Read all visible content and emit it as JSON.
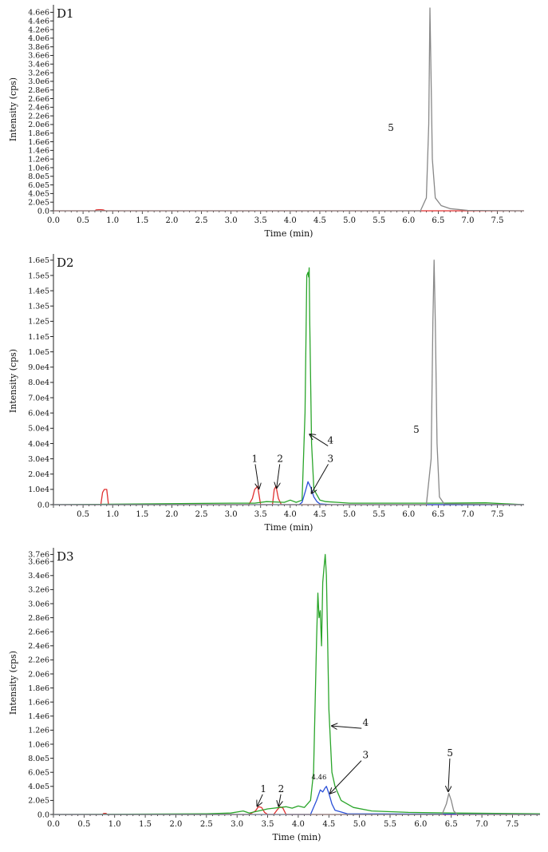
{
  "colors": {
    "red": "#e03030",
    "blue": "#2b50d8",
    "green": "#2aa52a",
    "gray": "#888888",
    "axis": "#222222"
  },
  "chart_data": [
    {
      "type": "line",
      "panel_label": "D1",
      "xlabel": "Time (min)",
      "ylabel": "Intensity (cps)",
      "xlim": [
        0.0,
        7.95
      ],
      "ylim": [
        0,
        4700000
      ],
      "x_ticks": [
        "0.0",
        "0.5",
        "1.0",
        "1.5",
        "2.0",
        "2.5",
        "3.0",
        "3.5",
        "4.0",
        "4.5",
        "5.0",
        "5.5",
        "6.0",
        "6.5",
        "7.0",
        "7.5"
      ],
      "y_ticks": [
        "0.0",
        "2.0e5",
        "4.0e5",
        "6.0e5",
        "8.0e5",
        "1.0e6",
        "1.2e6",
        "1.4e6",
        "1.6e6",
        "1.8e6",
        "2.0e6",
        "2.2e6",
        "2.4e6",
        "2.6e6",
        "2.8e6",
        "3.0e6",
        "3.2e6",
        "3.4e6",
        "3.6e6",
        "3.8e6",
        "4.0e6",
        "4.2e6",
        "4.4e6",
        "4.6e6"
      ],
      "series": [
        {
          "color": "red",
          "x": [
            0.0,
            0.7,
            0.72,
            0.76,
            0.8,
            0.84,
            0.88,
            7.95
          ],
          "y": [
            0,
            0,
            20000,
            25000,
            25000,
            20000,
            0,
            0
          ]
        },
        {
          "color": "gray",
          "x": [
            0.0,
            6.2,
            6.3,
            6.34,
            6.36,
            6.38,
            6.4,
            6.45,
            6.55,
            6.7,
            7.0,
            7.95
          ],
          "y": [
            0,
            0,
            300000,
            2000000,
            4700000,
            3000000,
            1200000,
            300000,
            120000,
            50000,
            10000,
            0
          ]
        }
      ],
      "annotations": [
        {
          "text": "5",
          "x": 5.7,
          "y": 1850000
        }
      ]
    },
    {
      "type": "line",
      "panel_label": "D2",
      "xlabel": "Time (min)",
      "ylabel": "Intensity (cps)",
      "xlim": [
        0.0,
        7.95
      ],
      "ylim": [
        0,
        162000
      ],
      "x_ticks": [
        "0.5",
        "1.0",
        "1.5",
        "2.0",
        "2.5",
        "3.0",
        "3.5",
        "4.0",
        "4.5",
        "5.0",
        "5.5",
        "6.0",
        "6.5",
        "7.0",
        "7.5"
      ],
      "y_ticks": [
        "0.0",
        "1.0e4",
        "2.0e4",
        "3.0e4",
        "4.0e4",
        "5.0e4",
        "6.0e4",
        "7.0e4",
        "8.0e4",
        "9.0e4",
        "1.0e5",
        "1.1e5",
        "1.2e5",
        "1.3e5",
        "1.4e5",
        "1.5e5",
        "1.6e5"
      ],
      "series": [
        {
          "color": "red",
          "x": [
            0.0,
            0.8,
            0.83,
            0.86,
            0.9,
            0.93,
            3.3,
            3.36,
            3.4,
            3.45,
            3.5,
            3.6,
            3.7,
            3.73,
            3.76,
            3.8,
            3.85,
            7.95
          ],
          "y": [
            0,
            0,
            8000,
            10000,
            10000,
            0,
            0,
            4000,
            10000,
            12000,
            0,
            0,
            0,
            10000,
            12000,
            4000,
            0,
            0
          ]
        },
        {
          "color": "green",
          "x": [
            0.0,
            3.0,
            3.4,
            3.6,
            3.9,
            4.0,
            4.1,
            4.2,
            4.25,
            4.28,
            4.3,
            4.31,
            4.32,
            4.33,
            4.36,
            4.4,
            4.5,
            4.6,
            4.8,
            5.0,
            6.5,
            7.3,
            7.95
          ],
          "y": [
            0,
            1000,
            1000,
            2000,
            1500,
            3000,
            1500,
            3000,
            60000,
            150000,
            152000,
            149000,
            155000,
            120000,
            40000,
            10000,
            3000,
            2000,
            1500,
            1000,
            1000,
            1200,
            0
          ]
        },
        {
          "color": "blue",
          "x": [
            0.0,
            4.15,
            4.2,
            4.25,
            4.3,
            4.35,
            4.4,
            4.45,
            4.5,
            4.7,
            7.95
          ],
          "y": [
            0,
            0,
            1500,
            8000,
            15000,
            11000,
            5000,
            2000,
            500,
            0,
            0
          ]
        },
        {
          "color": "gray",
          "x": [
            0.0,
            6.3,
            6.38,
            6.41,
            6.43,
            6.45,
            6.48,
            6.52,
            6.6,
            7.95
          ],
          "y": [
            0,
            0,
            30000,
            120000,
            160000,
            120000,
            40000,
            5000,
            500,
            0
          ]
        }
      ],
      "annotations": [
        {
          "text": "1",
          "x": 3.4,
          "y": 28000,
          "arrow_to": [
            3.47,
            10500
          ]
        },
        {
          "text": "2",
          "x": 3.83,
          "y": 28000,
          "arrow_to": [
            3.77,
            11000
          ]
        },
        {
          "text": "3",
          "x": 4.68,
          "y": 28000,
          "arrow_to": [
            4.36,
            7500
          ]
        },
        {
          "text": "4",
          "x": 4.68,
          "y": 40000,
          "arrow_to": [
            4.33,
            46000
          ]
        },
        {
          "text": "5",
          "x": 6.13,
          "y": 47000
        }
      ]
    },
    {
      "type": "line",
      "panel_label": "D3",
      "xlabel": "Time (min)",
      "ylabel": "Intensity (cps)",
      "xlim": [
        0.0,
        7.95
      ],
      "ylim": [
        0,
        3750000
      ],
      "x_ticks": [
        "0.0",
        "0.5",
        "1.0",
        "1.5",
        "2.0",
        "2.5",
        "3.0",
        "3.5",
        "4.0",
        "4.5",
        "5.0",
        "5.5",
        "6.0",
        "6.5",
        "7.0",
        "7.5"
      ],
      "y_ticks": [
        "0.0",
        "2.0e5",
        "4.0e5",
        "6.0e5",
        "8.0e5",
        "1.0e6",
        "1.2e6",
        "1.4e6",
        "1.6e6",
        "1.8e6",
        "2.0e6",
        "2.2e6",
        "2.4e6",
        "2.6e6",
        "2.8e6",
        "3.0e6",
        "3.2e6",
        "3.4e6",
        "3.6e6",
        "3.7e6"
      ],
      "series": [
        {
          "color": "red",
          "x": [
            0.0,
            0.8,
            0.82,
            0.86,
            0.88,
            3.2,
            3.3,
            3.35,
            3.4,
            3.45,
            3.5,
            3.6,
            3.65,
            3.7,
            3.75,
            3.8,
            7.95
          ],
          "y": [
            0,
            0,
            15000,
            15000,
            0,
            0,
            50000,
            110000,
            100000,
            30000,
            0,
            0,
            60000,
            110000,
            90000,
            0,
            0
          ]
        },
        {
          "color": "green",
          "x": [
            0.0,
            1.2,
            2.5,
            2.9,
            3.1,
            3.2,
            3.4,
            3.5,
            3.6,
            3.7,
            3.8,
            3.9,
            4.0,
            4.1,
            4.2,
            4.25,
            4.3,
            4.32,
            4.34,
            4.36,
            4.38,
            4.4,
            4.42,
            4.44,
            4.46,
            4.48,
            4.5,
            4.55,
            4.6,
            4.7,
            4.9,
            5.2,
            5.8,
            6.5,
            7.95
          ],
          "y": [
            0,
            5000,
            10000,
            20000,
            50000,
            20000,
            60000,
            80000,
            90000,
            100000,
            110000,
            90000,
            120000,
            100000,
            200000,
            600000,
            2500000,
            3150000,
            2800000,
            2900000,
            2400000,
            3300000,
            3500000,
            3700000,
            3400000,
            2500000,
            1500000,
            600000,
            400000,
            200000,
            100000,
            50000,
            30000,
            20000,
            10000
          ]
        },
        {
          "color": "blue",
          "x": [
            0.0,
            4.2,
            4.3,
            4.36,
            4.4,
            4.44,
            4.46,
            4.5,
            4.55,
            4.6,
            4.8,
            7.95
          ],
          "y": [
            0,
            0,
            200000,
            350000,
            320000,
            380000,
            400000,
            300000,
            150000,
            60000,
            10000,
            0
          ]
        },
        {
          "color": "gray",
          "x": [
            0.0,
            6.35,
            6.42,
            6.46,
            6.5,
            6.54,
            6.6,
            7.95
          ],
          "y": [
            0,
            0,
            150000,
            300000,
            200000,
            50000,
            0,
            0
          ]
        }
      ],
      "annotations": [
        {
          "text": "1",
          "x": 3.43,
          "y": 320000,
          "arrow_to": [
            3.33,
            120000
          ]
        },
        {
          "text": "2",
          "x": 3.72,
          "y": 320000,
          "arrow_to": [
            3.68,
            120000
          ]
        },
        {
          "text": "3",
          "x": 5.1,
          "y": 800000,
          "arrow_to": [
            4.52,
            300000
          ]
        },
        {
          "text": "4",
          "x": 5.1,
          "y": 1260000,
          "arrow_to": [
            4.55,
            1260000
          ]
        },
        {
          "text": "5",
          "x": 6.48,
          "y": 830000,
          "arrow_to": [
            6.45,
            330000
          ]
        },
        {
          "text": "4.46",
          "x": 4.34,
          "y": 500000
        }
      ]
    }
  ]
}
